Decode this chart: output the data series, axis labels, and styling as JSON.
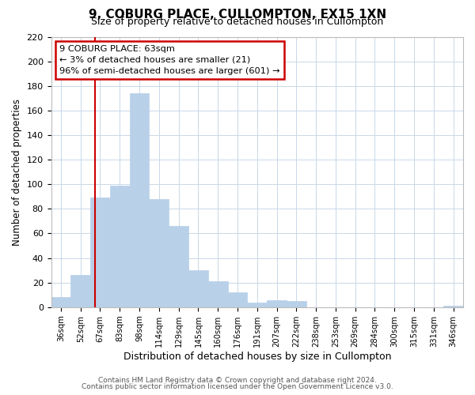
{
  "title": "9, COBURG PLACE, CULLOMPTON, EX15 1XN",
  "subtitle": "Size of property relative to detached houses in Cullompton",
  "xlabel": "Distribution of detached houses by size in Cullompton",
  "ylabel": "Number of detached properties",
  "bar_labels": [
    "36sqm",
    "52sqm",
    "67sqm",
    "83sqm",
    "98sqm",
    "114sqm",
    "129sqm",
    "145sqm",
    "160sqm",
    "176sqm",
    "191sqm",
    "207sqm",
    "222sqm",
    "238sqm",
    "253sqm",
    "269sqm",
    "284sqm",
    "300sqm",
    "315sqm",
    "331sqm",
    "346sqm"
  ],
  "bar_values": [
    8,
    26,
    89,
    99,
    174,
    88,
    66,
    30,
    21,
    12,
    4,
    6,
    5,
    0,
    0,
    0,
    0,
    0,
    0,
    0,
    1
  ],
  "bar_color": "#b8d0e8",
  "bar_edge_color": "#b8d0e8",
  "ylim": [
    0,
    220
  ],
  "yticks": [
    0,
    20,
    40,
    60,
    80,
    100,
    120,
    140,
    160,
    180,
    200,
    220
  ],
  "property_line_color": "#cc0000",
  "annotation_title": "9 COBURG PLACE: 63sqm",
  "annotation_line1": "← 3% of detached houses are smaller (21)",
  "annotation_line2": "96% of semi-detached houses are larger (601) →",
  "annotation_box_color": "#ffffff",
  "annotation_box_edge_color": "#cc0000",
  "footer1": "Contains HM Land Registry data © Crown copyright and database right 2024.",
  "footer2": "Contains public sector information licensed under the Open Government Licence v3.0.",
  "background_color": "#ffffff",
  "grid_color": "#c8d8e8",
  "title_fontsize": 11,
  "subtitle_fontsize": 9
}
